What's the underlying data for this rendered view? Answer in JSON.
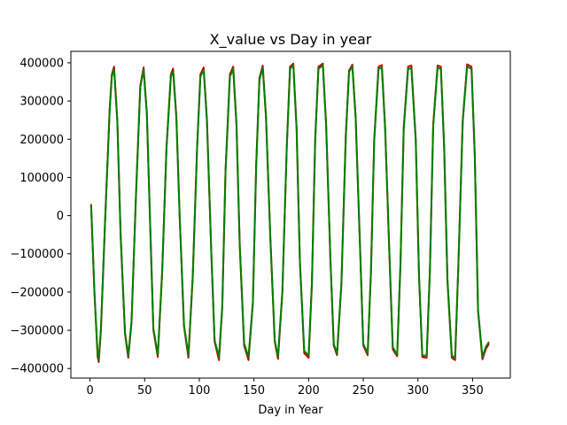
{
  "chart_data": {
    "type": "line",
    "title": "X_value vs Day in year",
    "xlabel": "Day in Year",
    "ylabel": "",
    "xlim": [
      -17.5,
      384.5
    ],
    "ylim": [
      -425000,
      430000
    ],
    "xticks": [
      0,
      50,
      100,
      150,
      200,
      250,
      300,
      350
    ],
    "xtick_labels": [
      "0",
      "50",
      "100",
      "150",
      "200",
      "250",
      "300",
      "350"
    ],
    "yticks": [
      -400000,
      -300000,
      -200000,
      -100000,
      0,
      100000,
      200000,
      300000,
      400000
    ],
    "ytick_labels": [
      "−400000",
      "−300000",
      "−200000",
      "−100000",
      "0",
      "100000",
      "200000",
      "300000",
      "400000"
    ],
    "grid": false,
    "legend": false,
    "series": [
      {
        "color": "#cc0000",
        "x": [
          1,
          4,
          7,
          8,
          10,
          14,
          18,
          20,
          22,
          25,
          28,
          32,
          35,
          38,
          42,
          46,
          49,
          52,
          55,
          58,
          62,
          66,
          70,
          74,
          76,
          79,
          82,
          86,
          90,
          94,
          98,
          101,
          104,
          107,
          111,
          114,
          118,
          121,
          124,
          128,
          131,
          134,
          137,
          141,
          145,
          149,
          152,
          155,
          158,
          161,
          165,
          169,
          172,
          176,
          180,
          183,
          186,
          189,
          192,
          196,
          200,
          203,
          206,
          209,
          213,
          216,
          220,
          223,
          226,
          230,
          234,
          237,
          240,
          243,
          247,
          250,
          254,
          257,
          260,
          264,
          267,
          270,
          274,
          277,
          281,
          284,
          287,
          291,
          294,
          298,
          301,
          304,
          308,
          311,
          314,
          318,
          321,
          324,
          327,
          331,
          334,
          337,
          341,
          345,
          349,
          352,
          355,
          359,
          362,
          365
        ],
        "y": [
          30000,
          -200000,
          -370000,
          -383000,
          -300000,
          0,
          280000,
          370000,
          390000,
          250000,
          -50000,
          -310000,
          -372000,
          -280000,
          50000,
          340000,
          388000,
          270000,
          -20000,
          -300000,
          -370000,
          -150000,
          180000,
          370000,
          385000,
          260000,
          0,
          -290000,
          -372000,
          -160000,
          180000,
          370000,
          388000,
          250000,
          -100000,
          -330000,
          -378000,
          -240000,
          120000,
          370000,
          390000,
          240000,
          -80000,
          -340000,
          -378000,
          -230000,
          130000,
          360000,
          393000,
          260000,
          -60000,
          -330000,
          -375000,
          -200000,
          180000,
          390000,
          398000,
          230000,
          -120000,
          -360000,
          -372000,
          -180000,
          200000,
          390000,
          398000,
          240000,
          -120000,
          -340000,
          -365000,
          -180000,
          210000,
          380000,
          395000,
          260000,
          -80000,
          -340000,
          -365000,
          -150000,
          200000,
          390000,
          394000,
          230000,
          -110000,
          -350000,
          -368000,
          -130000,
          230000,
          390000,
          393000,
          200000,
          -160000,
          -370000,
          -372000,
          -140000,
          240000,
          393000,
          390000,
          180000,
          -170000,
          -372000,
          -378000,
          -130000,
          250000,
          396000,
          390000,
          160000,
          -250000,
          -376000,
          -350000,
          -335000
        ]
      },
      {
        "color": "#008000",
        "x": [
          1,
          4,
          7,
          8,
          10,
          14,
          18,
          20,
          22,
          25,
          28,
          32,
          35,
          38,
          42,
          46,
          49,
          52,
          55,
          58,
          62,
          66,
          70,
          74,
          76,
          79,
          82,
          86,
          90,
          94,
          98,
          101,
          104,
          107,
          111,
          114,
          118,
          121,
          124,
          128,
          131,
          134,
          137,
          141,
          145,
          149,
          152,
          155,
          158,
          161,
          165,
          169,
          172,
          176,
          180,
          183,
          186,
          189,
          192,
          196,
          200,
          203,
          206,
          209,
          213,
          216,
          220,
          223,
          226,
          230,
          234,
          237,
          240,
          243,
          247,
          250,
          254,
          257,
          260,
          264,
          267,
          270,
          274,
          277,
          281,
          284,
          287,
          291,
          294,
          298,
          301,
          304,
          308,
          311,
          314,
          318,
          321,
          324,
          327,
          331,
          334,
          337,
          341,
          345,
          349,
          352,
          355,
          359,
          362,
          365
        ],
        "y": [
          28000,
          -195000,
          -365000,
          -378000,
          -295000,
          0,
          275000,
          365000,
          383000,
          245000,
          -48000,
          -305000,
          -366000,
          -276000,
          48000,
          336000,
          382000,
          266000,
          -20000,
          -296000,
          -364000,
          -148000,
          178000,
          364000,
          378000,
          256000,
          0,
          -286000,
          -366000,
          -158000,
          178000,
          364000,
          382000,
          246000,
          -98000,
          -326000,
          -370000,
          -236000,
          118000,
          364000,
          384000,
          236000,
          -78000,
          -334000,
          -370000,
          -226000,
          128000,
          354000,
          388000,
          256000,
          -58000,
          -326000,
          -368000,
          -196000,
          178000,
          384000,
          394000,
          226000,
          -118000,
          -354000,
          -366000,
          -176000,
          196000,
          384000,
          394000,
          236000,
          -118000,
          -336000,
          -360000,
          -176000,
          206000,
          376000,
          391000,
          256000,
          -78000,
          -336000,
          -360000,
          -148000,
          196000,
          384000,
          388000,
          226000,
          -108000,
          -344000,
          -364000,
          -128000,
          226000,
          384000,
          386000,
          196000,
          -158000,
          -366000,
          -366000,
          -138000,
          236000,
          387000,
          384000,
          176000,
          -166000,
          -366000,
          -372000,
          -128000,
          246000,
          390000,
          384000,
          156000,
          -246000,
          -370000,
          -344000,
          -330000
        ]
      }
    ]
  }
}
